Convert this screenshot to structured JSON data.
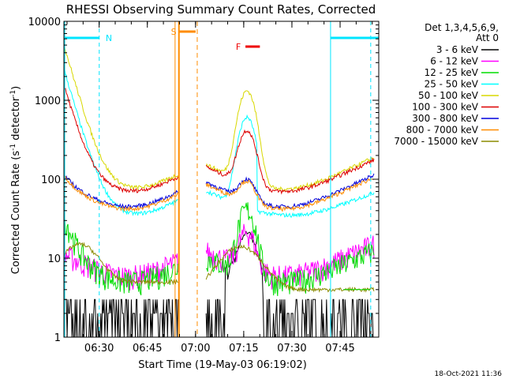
{
  "chart_data": {
    "type": "line",
    "title": "RHESSI Observing Summary Count Rates, Corrected",
    "xlabel": "Start Time (19-May-03 06:19:02)",
    "ylabel": "Corrected Count Rate (s",
    "ylabel_sup1": "-1",
    "ylabel_mid": " detector",
    "ylabel_sup2": "-1",
    "ylabel_end": ")",
    "y_scale": "log",
    "ylim": [
      1,
      10000
    ],
    "xlim_minutes": [
      6.3,
      6.3,
      0
    ],
    "x_range": [
      "06:19:02",
      "07:57:00"
    ],
    "x_ticks": [
      "06:30",
      "06:45",
      "07:00",
      "07:15",
      "07:30",
      "07:45"
    ],
    "y_ticks": [
      "1",
      "10",
      "100",
      "1000",
      "10000"
    ],
    "legend_placement": "right",
    "legend_header1": "Det 1,3,4,5,6,9,",
    "legend_header2": "Att 0",
    "series": [
      {
        "name": "3 - 6 keV",
        "color": "#000000"
      },
      {
        "name": "6 - 12 keV",
        "color": "#ff00ff"
      },
      {
        "name": "12 - 25 keV",
        "color": "#00dd00"
      },
      {
        "name": "25 - 50 keV",
        "color": "#00ffff"
      },
      {
        "name": "50 - 100 keV",
        "color": "#d8d800"
      },
      {
        "name": "100 - 300 keV",
        "color": "#dd0000"
      },
      {
        "name": "300 - 800 keV",
        "color": "#0000dd"
      },
      {
        "name": "800 - 7000 keV",
        "color": "#ff8c00"
      },
      {
        "name": "7000 - 15000 keV",
        "color": "#8b8b00"
      }
    ],
    "annotations": {
      "night_label": "N",
      "saa_label": "S",
      "flare_label": "F"
    },
    "colors": {
      "night": "#00e5ff",
      "saa": "#ff8c00",
      "flare": "#ee0000"
    }
  },
  "timestamp": "18-Oct-2021 11:36"
}
